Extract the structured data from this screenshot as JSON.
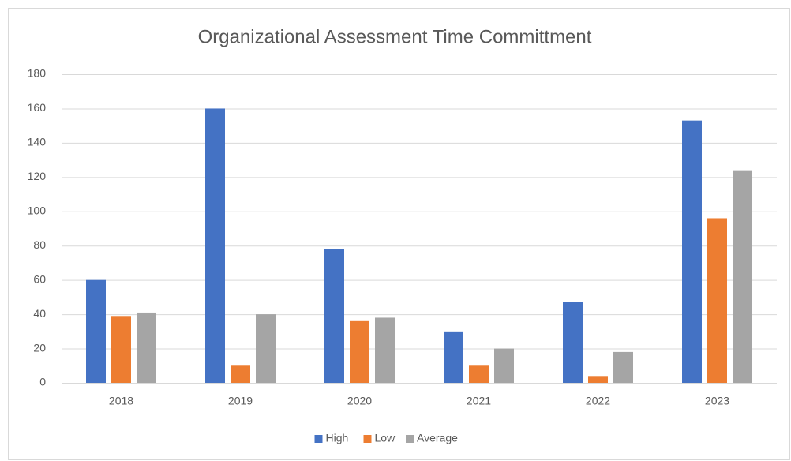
{
  "chart_data": {
    "type": "bar",
    "title": "Organizational Assessment Time Committment",
    "categories": [
      "2018",
      "2019",
      "2020",
      "2021",
      "2022",
      "2023"
    ],
    "series": [
      {
        "name": "High",
        "color": "#4472c4",
        "values": [
          60,
          160,
          78,
          30,
          47,
          153
        ]
      },
      {
        "name": "Low",
        "color": "#ed7d31",
        "values": [
          39,
          10,
          36,
          10,
          4,
          96
        ]
      },
      {
        "name": "Average",
        "color": "#a5a5a5",
        "values": [
          41,
          40,
          38,
          20,
          18,
          124
        ]
      }
    ],
    "ylim": [
      0,
      180
    ],
    "yticks": [
      0,
      20,
      40,
      60,
      80,
      100,
      120,
      140,
      160,
      180
    ],
    "grid": true,
    "legend": "bottom"
  }
}
